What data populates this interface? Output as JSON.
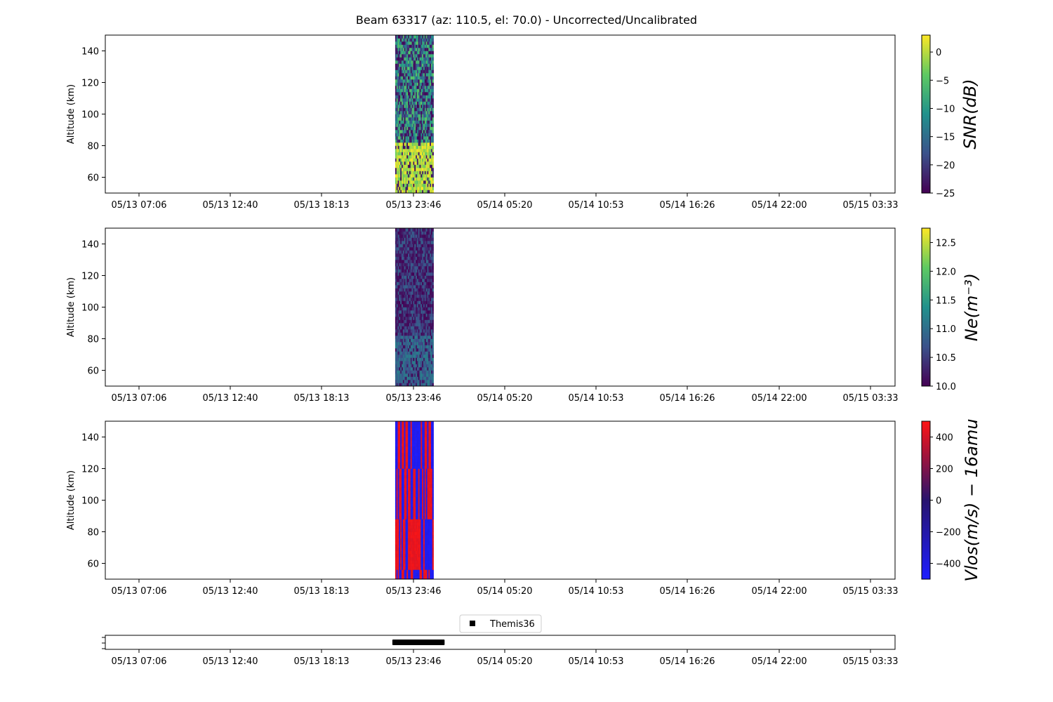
{
  "figure": {
    "title": "Beam 63317 (az: 110.5, el: 70.0) - Uncorrected/Uncalibrated"
  },
  "chart_data": [
    {
      "type": "heatmap",
      "panel": "snr",
      "ylabel": "Altitude (km)",
      "ylim": [
        50,
        150
      ],
      "yticks": [
        60,
        80,
        100,
        120,
        140
      ],
      "xticks": [
        "05/13 07:06",
        "05/13 12:40",
        "05/13 18:13",
        "05/13 23:46",
        "05/14 05:20",
        "05/14 10:53",
        "05/14 16:26",
        "05/14 22:00",
        "05/15 03:33"
      ],
      "data_time_range": [
        "05/13 22:40",
        "05/14 01:00"
      ],
      "colorbar": {
        "label": "SNR(dB)",
        "range": [
          -25,
          3
        ],
        "ticks": [
          "0",
          "−5",
          "−10",
          "−15",
          "−20",
          "−25"
        ],
        "tick_values": [
          0,
          -5,
          -10,
          -15,
          -20,
          -25
        ],
        "colormap": "viridis"
      },
      "pattern_note": "bright (about 0 dB) for altitudes 50-82 km, mixed about -10 to -25 dB above"
    },
    {
      "type": "heatmap",
      "panel": "ne",
      "ylabel": "Altitude (km)",
      "ylim": [
        50,
        150
      ],
      "yticks": [
        60,
        80,
        100,
        120,
        140
      ],
      "xticks": [
        "05/13 07:06",
        "05/13 12:40",
        "05/13 18:13",
        "05/13 23:46",
        "05/14 05:20",
        "05/14 10:53",
        "05/14 16:26",
        "05/14 22:00",
        "05/15 03:33"
      ],
      "data_time_range": [
        "05/13 22:40",
        "05/14 01:00"
      ],
      "colorbar": {
        "label": "Ne(m⁻³)",
        "range": [
          10.0,
          12.75
        ],
        "ticks": [
          "12.5",
          "12.0",
          "11.5",
          "11.0",
          "10.5",
          "10.0"
        ],
        "tick_values": [
          12.5,
          12.0,
          11.5,
          11.0,
          10.5,
          10.0
        ],
        "colormap": "viridis"
      }
    },
    {
      "type": "heatmap",
      "panel": "vlos",
      "ylabel": "Altitude (km)",
      "ylim": [
        50,
        150
      ],
      "yticks": [
        60,
        80,
        100,
        120,
        140
      ],
      "xticks": [
        "05/13 07:06",
        "05/13 12:40",
        "05/13 18:13",
        "05/13 23:46",
        "05/14 05:20",
        "05/14 10:53",
        "05/14 16:26",
        "05/14 22:00",
        "05/15 03:33"
      ],
      "data_time_range": [
        "05/13 22:40",
        "05/14 01:00"
      ],
      "colorbar": {
        "label": "Vlos(m/s) − 16amu",
        "range": [
          -500,
          500
        ],
        "ticks": [
          "400",
          "200",
          "0",
          "−200",
          "−400"
        ],
        "tick_values": [
          400,
          200,
          0,
          -200,
          -400
        ],
        "colormap": "bwr"
      },
      "altitude_bands_km": [
        50,
        57,
        88,
        121,
        150
      ]
    },
    {
      "type": "scatter",
      "panel": "themis",
      "xticks": [
        "05/13 07:06",
        "05/13 12:40",
        "05/13 18:13",
        "05/13 23:46",
        "05/14 05:20",
        "05/14 10:53",
        "05/14 16:26",
        "05/14 22:00",
        "05/15 03:33"
      ],
      "legend": {
        "entries": [
          "Themis36"
        ],
        "placement": "upper center"
      },
      "series": [
        {
          "name": "Themis36",
          "marker": "square",
          "color": "#000000",
          "x_range": [
            "05/13 22:40",
            "05/14 01:30"
          ]
        }
      ]
    }
  ]
}
